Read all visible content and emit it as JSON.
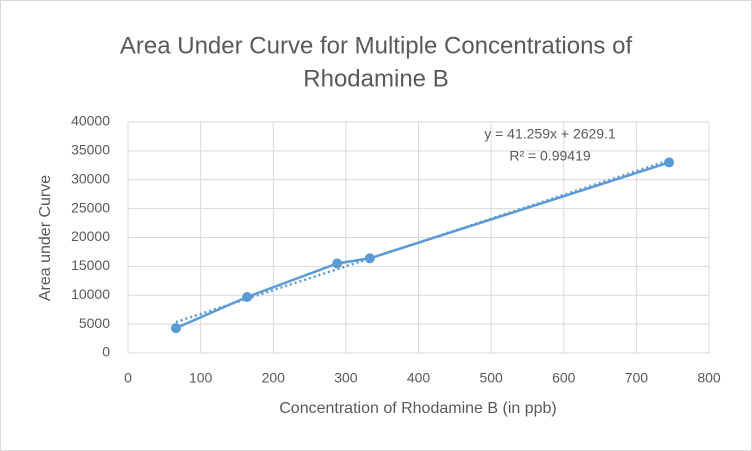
{
  "chart_data": {
    "type": "scatter-line",
    "title": [
      "Area Under Curve for Multiple Concentrations of",
      "Rhodamine B"
    ],
    "x_label": "Concentration of Rhodamine B (in ppb)",
    "y_label": "Area under Curve",
    "x": [
      66,
      164,
      288,
      333,
      745
    ],
    "values": [
      4300,
      9700,
      15500,
      16400,
      33000
    ],
    "color": "#5b9bd5",
    "xlim": [
      0,
      800
    ],
    "xticks": [
      0,
      100,
      200,
      300,
      400,
      500,
      600,
      700,
      800
    ],
    "ylim": [
      0,
      40000
    ],
    "yticks": [
      0,
      5000,
      10000,
      15000,
      20000,
      25000,
      30000,
      35000,
      40000
    ],
    "grid": true,
    "trendline": {
      "slope": 41.259,
      "intercept": 2629.1,
      "equation_label": "y = 41.259x + 2629.1",
      "r2": 0.99419,
      "r2_label": "R² = 0.99419"
    }
  }
}
